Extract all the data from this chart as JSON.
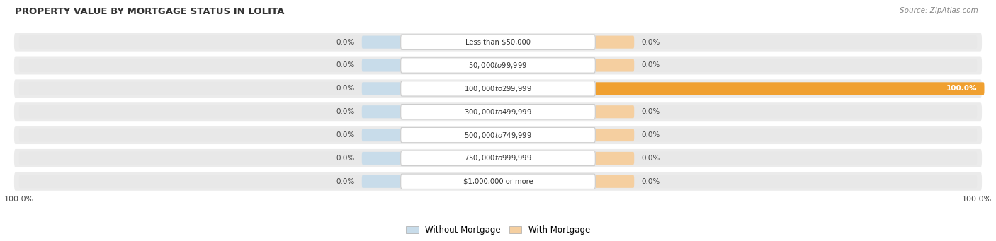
{
  "title": "PROPERTY VALUE BY MORTGAGE STATUS IN LOLITA",
  "source": "Source: ZipAtlas.com",
  "categories": [
    "Less than $50,000",
    "$50,000 to $99,999",
    "$100,000 to $299,999",
    "$300,000 to $499,999",
    "$500,000 to $749,999",
    "$750,000 to $999,999",
    "$1,000,000 or more"
  ],
  "without_mortgage": [
    0.0,
    0.0,
    0.0,
    0.0,
    0.0,
    0.0,
    0.0
  ],
  "with_mortgage": [
    0.0,
    0.0,
    100.0,
    0.0,
    0.0,
    0.0,
    0.0
  ],
  "color_without": "#a8c4de",
  "color_without_stub": "#c8dcea",
  "color_with_full": "#f0a030",
  "color_with_stub": "#f5cfa0",
  "row_bg_color": "#ebebeb",
  "row_bg_inner": "#e0e0e0",
  "legend_without": "Without Mortgage",
  "legend_with": "With Mortgage",
  "left_axis_label": "100.0%",
  "right_axis_label": "100.0%"
}
